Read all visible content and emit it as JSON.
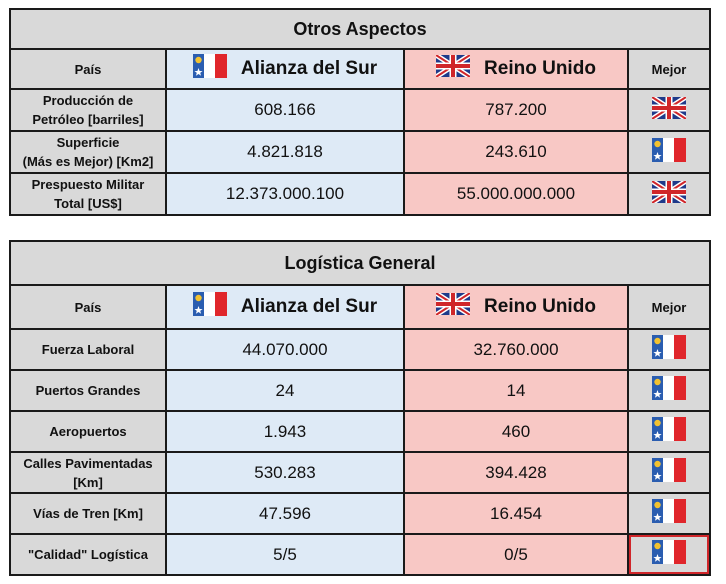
{
  "tables": [
    {
      "title": "Otros Aspectos",
      "header": {
        "country": "País",
        "side_a": "Alianza del Sur",
        "side_b": "Reino Unido",
        "best": "Mejor"
      },
      "rows": [
        {
          "label": [
            "Producción de",
            "Petróleo [barriles]"
          ],
          "a": "608.166",
          "b": "787.200",
          "best": "uk-flag"
        },
        {
          "label": [
            "Superficie",
            "(Más es Mejor) [Km2]"
          ],
          "a": "4.821.818",
          "b": "243.610",
          "best": "alianza-flag"
        },
        {
          "label": [
            "Prespuesto Militar",
            "Total [US$]"
          ],
          "a": "12.373.000.100",
          "b": "55.000.000.000",
          "best": "uk-flag"
        }
      ]
    },
    {
      "title": "Logística General",
      "header": {
        "country": "País",
        "side_a": "Alianza del Sur",
        "side_b": "Reino Unido",
        "best": "Mejor"
      },
      "rows": [
        {
          "label": [
            "Fuerza Laboral"
          ],
          "a": "44.070.000",
          "b": "32.760.000",
          "best": "alianza-flag"
        },
        {
          "label": [
            "Puertos Grandes"
          ],
          "a": "24",
          "b": "14",
          "best": "alianza-flag"
        },
        {
          "label": [
            "Aeropuertos"
          ],
          "a": "1.943",
          "b": "460",
          "best": "alianza-flag"
        },
        {
          "label": [
            "Calles Pavimentadas",
            "[Km]"
          ],
          "a": "530.283",
          "b": "394.428",
          "best": "alianza-flag"
        },
        {
          "label": [
            "Vías de Tren [Km]"
          ],
          "a": "47.596",
          "b": "16.454",
          "best": "alianza-flag"
        },
        {
          "label": [
            "\"Calidad\" Logística"
          ],
          "a": "5/5",
          "b": "0/5",
          "best": "alianza-flag",
          "highlighted": true
        }
      ]
    }
  ],
  "colors": {
    "side_a_bg": "#deeaf6",
    "side_b_bg": "#f8c8c5",
    "header_bg": "#d9d9d9",
    "highlight_border": "#d0262a"
  }
}
